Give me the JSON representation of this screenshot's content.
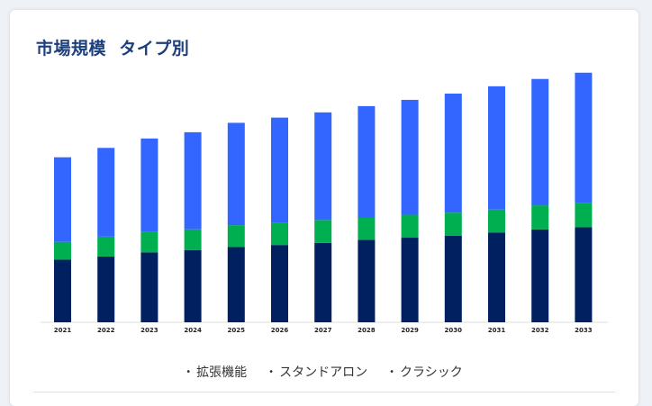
{
  "title": "市場規模  タイプ別",
  "legend": [
    "拡張機能",
    "スタンドアロン",
    "クラシック"
  ],
  "colors": {
    "series_1": "#002060",
    "series_2": "#00b050",
    "series_3": "#3366ff",
    "title": "#1d3f7c"
  },
  "chart_data": {
    "type": "bar",
    "stacked": true,
    "title": "市場規模  タイプ別",
    "xlabel": "",
    "ylabel": "",
    "categories": [
      "2021",
      "2022",
      "2023",
      "2024",
      "2025",
      "2026",
      "2027",
      "2028",
      "2029",
      "2030",
      "2031",
      "2032",
      "2033"
    ],
    "series": [
      {
        "name": "拡張機能",
        "values": [
          60,
          63,
          67,
          69,
          72,
          74,
          76,
          79,
          81,
          83,
          86,
          89,
          91
        ]
      },
      {
        "name": "スタンドアロン",
        "values": [
          17,
          19,
          20,
          20,
          21,
          21,
          22,
          21,
          22,
          22,
          22,
          23,
          23
        ]
      },
      {
        "name": "クラシック",
        "values": [
          81,
          85,
          89,
          93,
          98,
          101,
          103,
          107,
          110,
          114,
          118,
          121,
          125
        ]
      }
    ],
    "ylim": [
      0,
      250
    ],
    "grid": false,
    "legend_position": "bottom"
  }
}
